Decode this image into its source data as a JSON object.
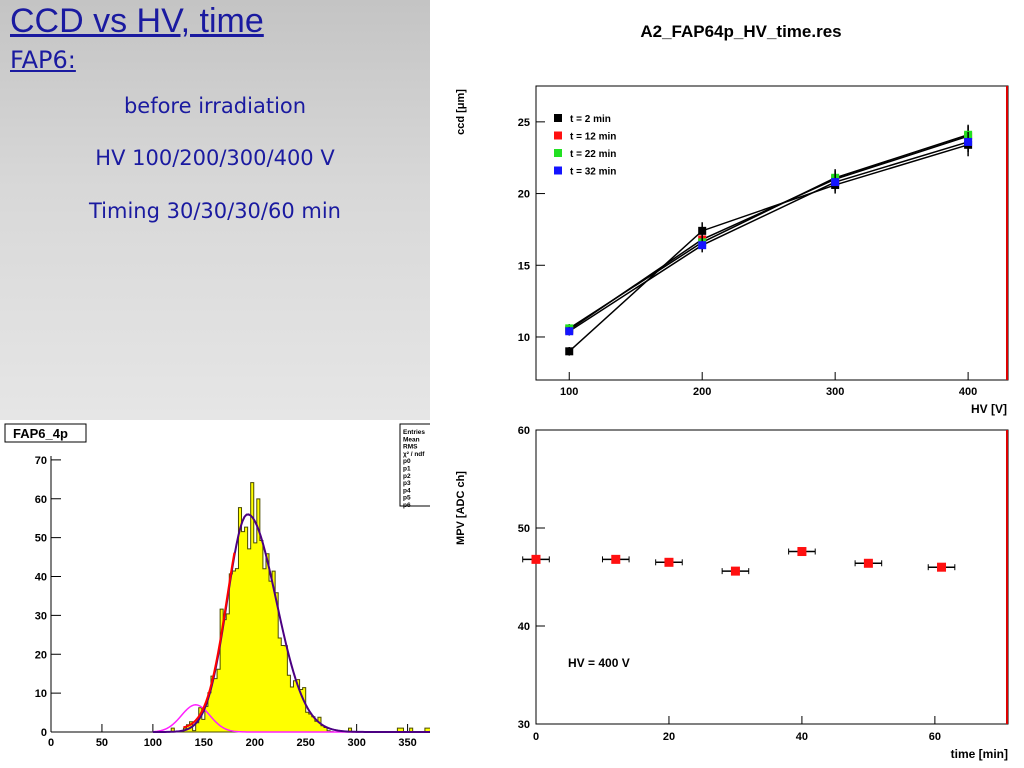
{
  "slide": {
    "title": "CCD vs HV, time",
    "subtitle": "FAP6:",
    "lines": [
      "before irradiation",
      "HV 100/200/300/400 V",
      "Timing 30/30/30/60 min"
    ]
  },
  "colors": {
    "text_blue": "#1a1aa0",
    "series_black": "#000000",
    "series_red": "#ff1010",
    "series_green": "#22e022",
    "series_blue": "#1414ff",
    "histogram_fill": "#ffff00",
    "fit_total": "#4b0082",
    "fit_partial": "#ff20ff",
    "fit_red": "#ff0000"
  },
  "chart_data": [
    {
      "type": "line",
      "title": "A2_FAP64p_HV_time.res",
      "xlabel": "HV [V]",
      "ylabel": "ccd [μm]",
      "xlim": [
        75,
        430
      ],
      "ylim": [
        7,
        27.5
      ],
      "x_ticks": [
        "100",
        "200",
        "300",
        "400"
      ],
      "y_ticks": [
        "10",
        "15",
        "20",
        "25"
      ],
      "x": [
        100,
        200,
        300,
        400
      ],
      "series": [
        {
          "name": "t = 2 min",
          "color": "#000000",
          "values": [
            9.0,
            17.4,
            20.6,
            23.4
          ],
          "errors": [
            0.3,
            0.6,
            0.6,
            0.8
          ]
        },
        {
          "name": "t = 12 min",
          "color": "#ff1010",
          "values": [
            10.5,
            16.8,
            21.0,
            24.0
          ],
          "errors": [
            0.3,
            0.5,
            0.6,
            0.7
          ]
        },
        {
          "name": "t = 22 min",
          "color": "#22e022",
          "values": [
            10.6,
            16.6,
            21.1,
            24.1
          ],
          "errors": [
            0.3,
            0.5,
            0.6,
            0.7
          ]
        },
        {
          "name": "t = 32 min",
          "color": "#1414ff",
          "values": [
            10.4,
            16.4,
            20.8,
            23.6
          ],
          "errors": [
            0.3,
            0.5,
            0.6,
            0.7
          ]
        }
      ],
      "legend_position": "top-left",
      "grid": false
    },
    {
      "type": "scatter",
      "title": "",
      "xlabel": "time [min]",
      "ylabel": "MPV [ADC ch]",
      "xlim": [
        0,
        71
      ],
      "ylim": [
        30,
        60
      ],
      "x_ticks": [
        "0",
        "20",
        "40",
        "60"
      ],
      "y_ticks": [
        "30",
        "40",
        "50",
        "60"
      ],
      "annotation": "HV = 400 V",
      "series": [
        {
          "color": "#ff1010",
          "x": [
            0,
            12,
            20,
            30,
            40,
            50,
            61
          ],
          "y": [
            46.8,
            46.8,
            46.5,
            45.6,
            47.6,
            46.4,
            46.0
          ],
          "x_errors": [
            2,
            2,
            2,
            2,
            2,
            2,
            2
          ]
        }
      ],
      "grid": false
    },
    {
      "type": "bar",
      "title": "FAP6_4p",
      "xlabel": "",
      "ylabel": "",
      "xlim": [
        0,
        372
      ],
      "ylim": [
        0,
        71
      ],
      "x_ticks": [
        "0",
        "50",
        "100",
        "150",
        "200",
        "250",
        "300",
        "350"
      ],
      "y_ticks": [
        "0",
        "10",
        "20",
        "30",
        "40",
        "50",
        "60",
        "70"
      ],
      "histogram_bin_width": 3,
      "histogram_approximate_shape": {
        "peak_x": 193,
        "peak_y": 56,
        "sigma_left": 20,
        "sigma_right": 28,
        "start_x": 100,
        "end_x": 372
      },
      "stats_box_labels": [
        "Entries",
        "Mean",
        "RMS",
        "χ² / ndf",
        "p0",
        "p1",
        "p2",
        "p3",
        "p4",
        "p5",
        "p6"
      ],
      "grid": false
    }
  ]
}
